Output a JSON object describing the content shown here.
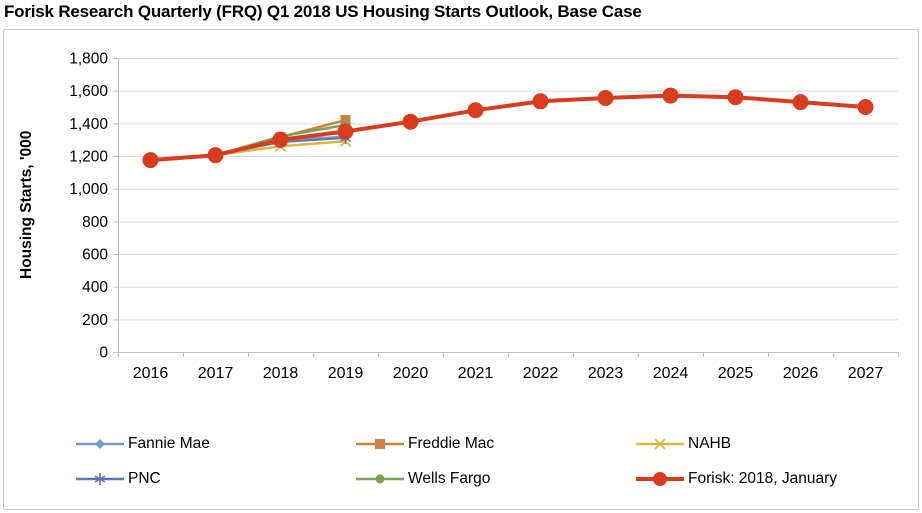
{
  "title": "Forisk Research Quarterly (FRQ) Q1 2018 US Housing Starts Outlook, Base Case",
  "colors": {
    "gridline": "#d9d9d9",
    "axis": "#bfbfbf",
    "text": "#000000",
    "frame_border": "#c9c9c9",
    "accent_red": "#d83c1e"
  },
  "chart_data": {
    "type": "line",
    "title": "Forisk Research Quarterly (FRQ) Q1 2018 US Housing Starts Outlook, Base Case",
    "xlabel": "",
    "ylabel": "Housing Starts, '000",
    "ylim": [
      0,
      1800
    ],
    "ytick_step": 200,
    "grid": true,
    "legend_position": "bottom",
    "categories": [
      2016,
      2017,
      2018,
      2019,
      2020,
      2021,
      2022,
      2023,
      2024,
      2025,
      2026,
      2027
    ],
    "series": [
      {
        "name": "Fannie Mae",
        "color": "#7a9ac9",
        "marker": "diamond",
        "line_width": 2,
        "values": [
          null,
          1205,
          1295,
          1320,
          null,
          null,
          null,
          null,
          null,
          null,
          null,
          null
        ]
      },
      {
        "name": "Freddie Mac",
        "color": "#c9823f",
        "marker": "square",
        "line_width": 2.5,
        "values": [
          null,
          1205,
          1315,
          1420,
          null,
          null,
          null,
          null,
          null,
          null,
          null,
          null
        ]
      },
      {
        "name": "NAHB",
        "color": "#dbb844",
        "marker": "x",
        "line_width": 2.5,
        "values": [
          null,
          1205,
          1260,
          1290,
          null,
          null,
          null,
          null,
          null,
          null,
          null,
          null
        ]
      },
      {
        "name": "PNC",
        "color": "#5b77b5",
        "marker": "asterisk",
        "line_width": 2,
        "values": [
          null,
          1205,
          1285,
          1310,
          null,
          null,
          null,
          null,
          null,
          null,
          null,
          null
        ]
      },
      {
        "name": "Wells Fargo",
        "color": "#7ba154",
        "marker": "circle",
        "line_width": 2.5,
        "values": [
          null,
          1205,
          1320,
          1390,
          null,
          null,
          null,
          null,
          null,
          null,
          null,
          null
        ]
      },
      {
        "name": "Forisk: 2018, January",
        "color": "#d83c1e",
        "marker": "circle-large",
        "line_width": 4,
        "values": [
          1175,
          1205,
          1300,
          1350,
          1410,
          1480,
          1535,
          1555,
          1570,
          1560,
          1530,
          1500
        ]
      }
    ]
  }
}
